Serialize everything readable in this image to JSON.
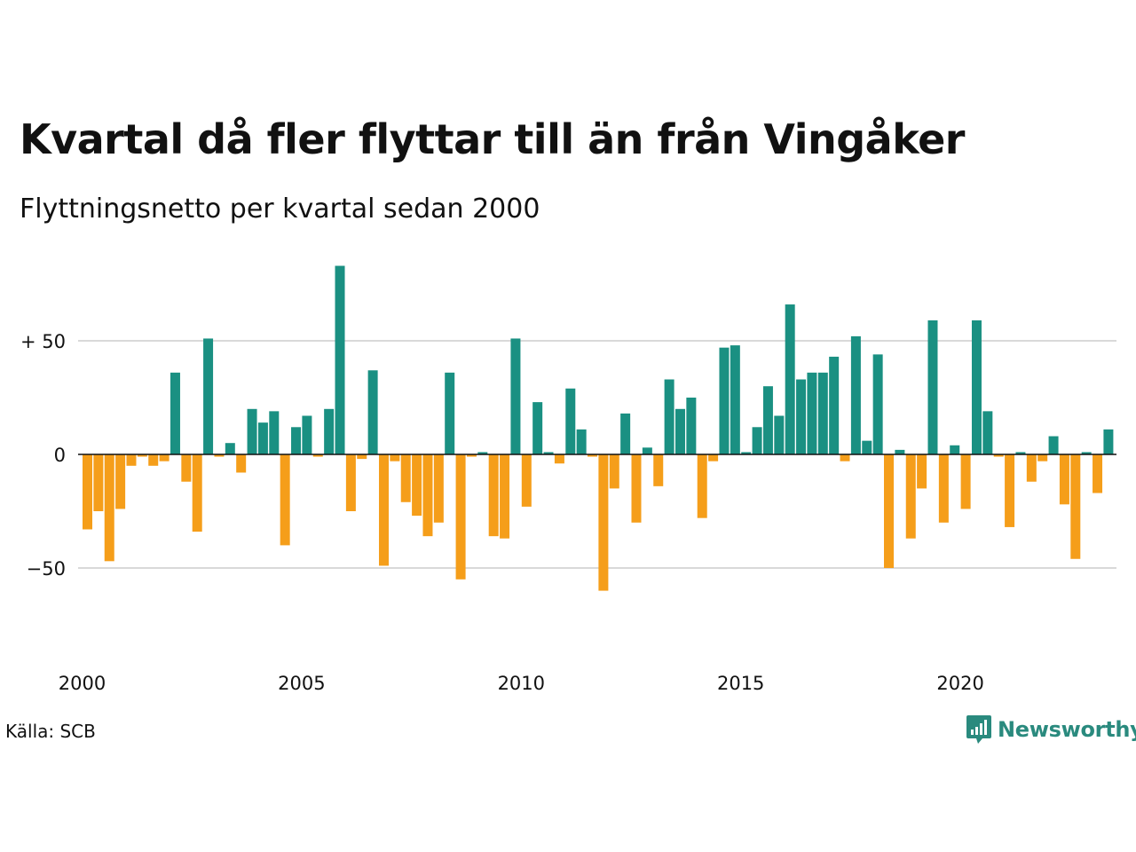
{
  "title": "Kvartal då fler flyttar till än från Vingåker",
  "subtitle": "Flyttningsnetto per kvartal sedan 2000",
  "source": "Källa: SCB",
  "brand": "Newsworthy",
  "colors": {
    "positive": "#1a9082",
    "negative": "#f59e1a",
    "grid": "#d9d9d9",
    "brand": "#2a8a7e"
  },
  "chart_data": {
    "type": "bar",
    "x_start": "2000 Q1",
    "x_tick_labels": [
      "2000",
      "2005",
      "2010",
      "2015",
      "2020"
    ],
    "y_tick_labels": [
      "+ 50",
      "0",
      "−50"
    ],
    "y_ticks": [
      50,
      0,
      -50
    ],
    "ylim": [
      -90,
      90
    ],
    "grid": true,
    "values": [
      -33,
      -25,
      -47,
      -24,
      -5,
      -1,
      -5,
      -3,
      36,
      -12,
      -34,
      51,
      -1,
      5,
      -8,
      20,
      14,
      19,
      -40,
      12,
      17,
      -1,
      20,
      83,
      -25,
      -2,
      37,
      -49,
      -3,
      -21,
      -27,
      -36,
      -30,
      36,
      -55,
      -1,
      1,
      -36,
      -37,
      51,
      -23,
      23,
      1,
      -4,
      29,
      11,
      -1,
      -60,
      -15,
      18,
      -30,
      3,
      -14,
      33,
      20,
      25,
      -28,
      -3,
      47,
      48,
      1,
      12,
      30,
      17,
      66,
      33,
      36,
      36,
      43,
      -3,
      52,
      6,
      44,
      -50,
      2,
      -37,
      -15,
      59,
      -30,
      4,
      -24,
      59,
      19,
      -1,
      -32,
      1,
      -12,
      -3,
      8,
      -22,
      -46,
      1,
      -17,
      11
    ]
  }
}
